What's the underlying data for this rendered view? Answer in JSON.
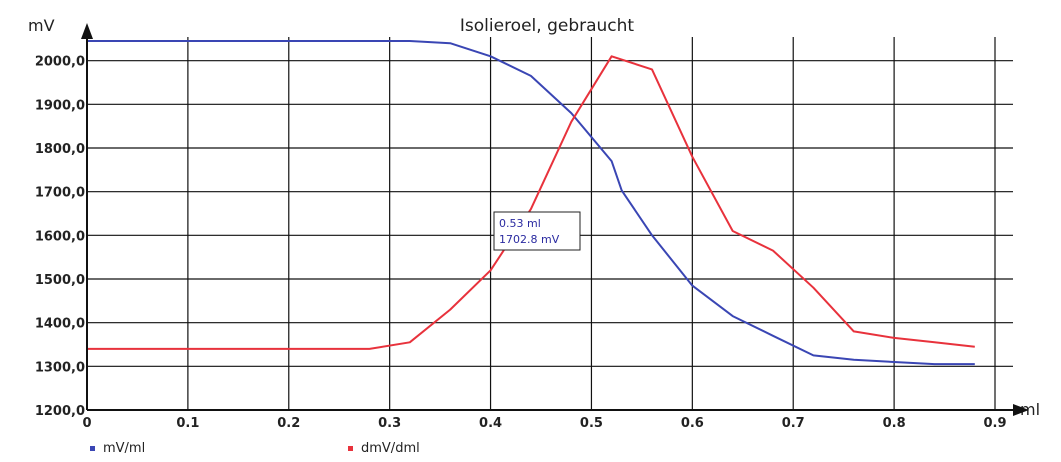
{
  "chart_data": {
    "type": "line",
    "title": "Isolieroel, gebraucht",
    "ylabel": "mV",
    "xlabel": "ml",
    "xlim": [
      0,
      0.9
    ],
    "ylim": [
      1200,
      2100
    ],
    "x_ticks": [
      0,
      0.1,
      0.2,
      0.3,
      0.4,
      0.5,
      0.6,
      0.7,
      0.8,
      0.9
    ],
    "x_tick_labels": [
      "0",
      "0.1",
      "0.2",
      "0.3",
      "0.4",
      "0.5",
      "0.6",
      "0.7",
      "0.8",
      "0.9"
    ],
    "y_ticks": [
      1200,
      1300,
      1400,
      1500,
      1600,
      1700,
      1800,
      1900,
      2000
    ],
    "y_tick_labels": [
      "1200,0",
      "1300,0",
      "1400,0",
      "1500,0",
      "1600,0",
      "1700,0",
      "1800,0",
      "1900,0",
      "2000,0"
    ],
    "grid": true,
    "legend_position": "bottom-left",
    "series": [
      {
        "name": "mV/ml",
        "color": "#3a46b4",
        "x": [
          0,
          0.32,
          0.36,
          0.4,
          0.44,
          0.48,
          0.52,
          0.53,
          0.56,
          0.6,
          0.64,
          0.68,
          0.72,
          0.76,
          0.8,
          0.84,
          0.88
        ],
        "y": [
          2045,
          2045,
          2040,
          2010,
          1965,
          1880,
          1770,
          1702.8,
          1600,
          1485,
          1415,
          1370,
          1325,
          1315,
          1310,
          1305,
          1305
        ]
      },
      {
        "name": "dmV/dml",
        "color": "#e8323c",
        "x": [
          0,
          0.28,
          0.32,
          0.36,
          0.4,
          0.44,
          0.48,
          0.52,
          0.56,
          0.6,
          0.64,
          0.68,
          0.72,
          0.76,
          0.8,
          0.84,
          0.88
        ],
        "y": [
          1340,
          1340,
          1355,
          1430,
          1520,
          1660,
          1860,
          2010,
          1980,
          1780,
          1610,
          1565,
          1480,
          1380,
          1365,
          1355,
          1345
        ]
      }
    ],
    "annotation": {
      "x": 0.53,
      "y": 1702.8,
      "line1": "0.53 ml",
      "line2": "1702.8 mV"
    }
  }
}
